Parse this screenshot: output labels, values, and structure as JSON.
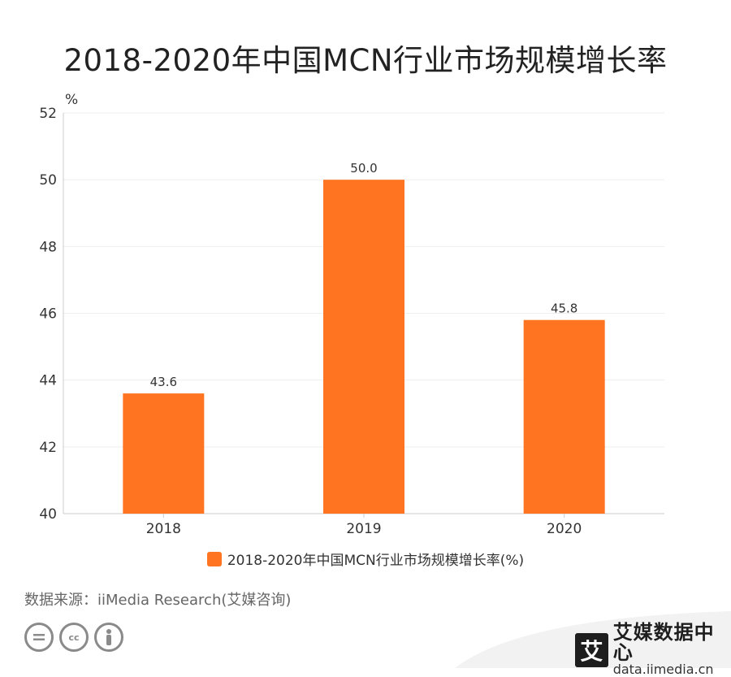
{
  "title": "2018-2020年中国MCN行业市场规模增长率",
  "source": "数据来源：iiMedia Research(艾媒咨询)",
  "brand": {
    "mark": "艾",
    "name": "艾媒数据中心",
    "url": "data.iimedia.cn"
  },
  "colors": {
    "bar": "#ff7420",
    "axis": "#cccccc",
    "grid": "#eeeeee"
  },
  "icons": [
    "cc-nd-icon",
    "cc-icon",
    "cc-by-icon"
  ],
  "chart_data": {
    "type": "bar",
    "title": "2018-2020年中国MCN行业市场规模增长率",
    "unit": "%",
    "categories": [
      "2018",
      "2019",
      "2020"
    ],
    "series": [
      {
        "name": "2018-2020年中国MCN行业市场规模增长率(%)",
        "values": [
          43.6,
          50.0,
          45.8
        ],
        "labels": [
          "43.6",
          "50.0",
          "45.8"
        ]
      }
    ],
    "ylim": [
      40,
      52
    ],
    "yticks": [
      "40",
      "42",
      "44",
      "46",
      "48",
      "50",
      "52"
    ],
    "grid": true,
    "legend": "bottom"
  }
}
